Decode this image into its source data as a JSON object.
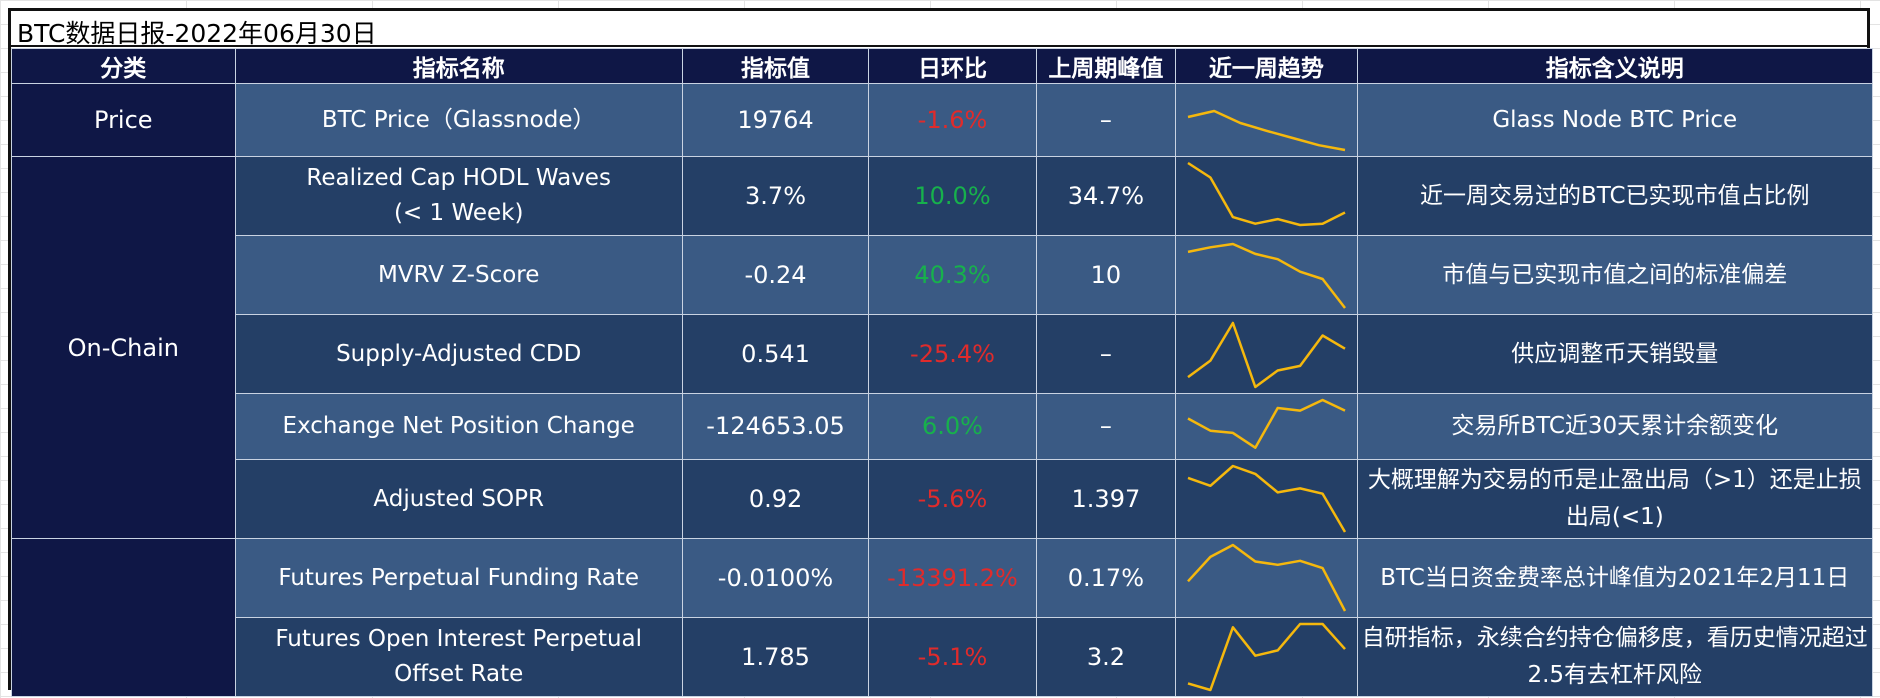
{
  "title": "BTC数据日报-2022年06月30日",
  "headers": [
    "分类",
    "指标名称",
    "指标值",
    "日环比",
    "上周期峰值",
    "近一周趋势",
    "指标含义说明"
  ],
  "categories": {
    "price": "Price",
    "onchain": "On-Chain",
    "third": ""
  },
  "spark_color": "#f5b80d",
  "rows": [
    {
      "name": "BTC Price（Glassnode）",
      "value": "19764",
      "change": "-1.6%",
      "change_dir": "neg",
      "peak": "–",
      "desc": "Glass Node BTC Price",
      "trend": [
        0.55,
        0.65,
        0.45,
        0.32,
        0.2,
        0.08,
        0.0
      ]
    },
    {
      "name": "Realized Cap HODL Waves\n(< 1 Week)",
      "value": "3.7%",
      "change": "10.0%",
      "change_dir": "pos",
      "peak": "34.7%",
      "desc": "近一周交易过的BTC已实现市值占比例",
      "trend": [
        1.0,
        0.78,
        0.18,
        0.08,
        0.15,
        0.06,
        0.08,
        0.25
      ]
    },
    {
      "name": "MVRV Z-Score",
      "value": "-0.24",
      "change": "40.3%",
      "change_dir": "pos",
      "peak": "10",
      "desc": "市值与已实现市值之间的标准偏差",
      "trend": [
        0.85,
        0.92,
        0.97,
        0.82,
        0.74,
        0.55,
        0.44,
        0.0
      ]
    },
    {
      "name": "Supply-Adjusted CDD",
      "value": "0.541",
      "change": "-25.4%",
      "change_dir": "neg",
      "peak": "–",
      "desc": "供应调整币天销毁量",
      "trend": [
        0.15,
        0.4,
        0.97,
        0.0,
        0.25,
        0.32,
        0.78,
        0.58
      ]
    },
    {
      "name": "Exchange Net Position Change",
      "value": "-124653.05",
      "change": "6.0%",
      "change_dir": "pos",
      "peak": "–",
      "desc": "交易所BTC近30天累计余额变化",
      "trend": [
        0.65,
        0.42,
        0.38,
        0.1,
        0.85,
        0.8,
        1.0,
        0.8
      ]
    },
    {
      "name": "Adjusted SOPR",
      "value": "0.92",
      "change": "-5.6%",
      "change_dir": "neg",
      "peak": "1.397",
      "desc": "大概理解为交易的币是止盈出局（>1）还是止损出局(<1)",
      "trend": [
        0.82,
        0.7,
        1.0,
        0.88,
        0.6,
        0.66,
        0.58,
        0.0
      ]
    },
    {
      "name": "Futures Perpetual Funding Rate",
      "value": "-0.0100%",
      "change": "-13391.2%",
      "change_dir": "neg",
      "peak": "0.17%",
      "desc": "BTC当日资金费率总计峰值为2021年2月11日",
      "trend": [
        0.45,
        0.82,
        1.0,
        0.75,
        0.7,
        0.76,
        0.65,
        0.0
      ]
    },
    {
      "name": "Futures Open Interest Perpetual\nOffset Rate",
      "value": "1.785",
      "change": "-5.1%",
      "change_dir": "neg",
      "peak": "3.2",
      "desc": "自研指标，永续合约持仓偏移度，看历史情况超过2.5有去杠杆风险",
      "trend": [
        0.1,
        0.0,
        0.95,
        0.52,
        0.6,
        1.0,
        1.0,
        0.62
      ]
    }
  ]
}
